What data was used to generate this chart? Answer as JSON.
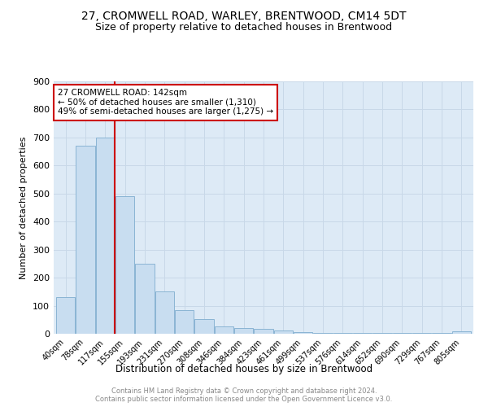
{
  "title": "27, CROMWELL ROAD, WARLEY, BRENTWOOD, CM14 5DT",
  "subtitle": "Size of property relative to detached houses in Brentwood",
  "xlabel": "Distribution of detached houses by size in Brentwood",
  "ylabel": "Number of detached properties",
  "bar_color": "#c8ddf0",
  "bar_edge_color": "#8ab4d4",
  "bin_labels": [
    "40sqm",
    "78sqm",
    "117sqm",
    "155sqm",
    "193sqm",
    "231sqm",
    "270sqm",
    "308sqm",
    "346sqm",
    "384sqm",
    "423sqm",
    "461sqm",
    "499sqm",
    "537sqm",
    "576sqm",
    "614sqm",
    "652sqm",
    "690sqm",
    "729sqm",
    "767sqm",
    "805sqm"
  ],
  "bar_heights": [
    130,
    670,
    700,
    490,
    250,
    150,
    85,
    52,
    26,
    20,
    18,
    12,
    7,
    4,
    3,
    2,
    2,
    2,
    2,
    2,
    8
  ],
  "ylim": [
    0,
    900
  ],
  "yticks": [
    0,
    100,
    200,
    300,
    400,
    500,
    600,
    700,
    800,
    900
  ],
  "property_line_label": "27 CROMWELL ROAD: 142sqm",
  "annotation_line1": "← 50% of detached houses are smaller (1,310)",
  "annotation_line2": "49% of semi-detached houses are larger (1,275) →",
  "vline_x": 2.5,
  "vline_color": "#cc0000",
  "grid_color": "#c8d8e8",
  "background_color": "#ddeaf6",
  "footer_line1": "Contains HM Land Registry data © Crown copyright and database right 2024.",
  "footer_line2": "Contains public sector information licensed under the Open Government Licence v3.0.",
  "title_fontsize": 10,
  "subtitle_fontsize": 9,
  "ylabel_fontsize": 8,
  "xlabel_fontsize": 8.5,
  "tick_fontsize": 7,
  "annotation_fontsize": 7.5,
  "footer_fontsize": 6
}
